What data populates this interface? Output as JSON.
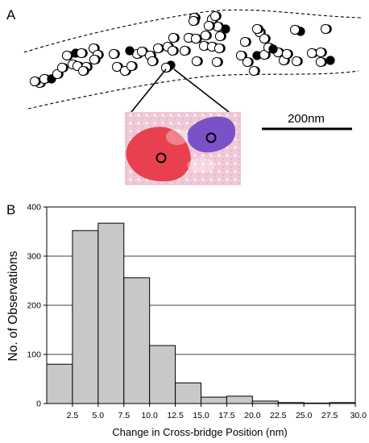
{
  "panel_a": {
    "label": "A",
    "scale_bar_label": "200nm",
    "inset_colors": {
      "red": "#e8404f",
      "blue": "#7a52c8",
      "bg": "#f1c6d3"
    },
    "beads": [
      [
        49,
        103,
        "w"
      ],
      [
        43,
        101,
        "w"
      ],
      [
        55,
        98,
        "w"
      ],
      [
        64,
        98,
        "b"
      ],
      [
        71,
        92,
        "w"
      ],
      [
        77,
        84,
        "w"
      ],
      [
        83,
        69,
        "w"
      ],
      [
        94,
        66,
        "b"
      ],
      [
        101,
        66,
        "w"
      ],
      [
        90,
        80,
        "w"
      ],
      [
        96,
        82,
        "w"
      ],
      [
        107,
        83,
        "w"
      ],
      [
        103,
        88,
        "w"
      ],
      [
        116,
        60,
        "w"
      ],
      [
        121,
        68,
        "w"
      ],
      [
        117,
        74,
        "w"
      ],
      [
        141,
        67,
        "w"
      ],
      [
        145,
        83,
        "w"
      ],
      [
        155,
        88,
        "w"
      ],
      [
        163,
        82,
        "w"
      ],
      [
        170,
        67,
        "w"
      ],
      [
        161,
        63,
        "b"
      ],
      [
        176,
        64,
        "w"
      ],
      [
        186,
        69,
        "w"
      ],
      [
        189,
        76,
        "w"
      ],
      [
        196,
        60,
        "w"
      ],
      [
        208,
        58,
        "w"
      ],
      [
        214,
        63,
        "w"
      ],
      [
        212,
        81,
        "b"
      ],
      [
        206,
        84,
        "w"
      ],
      [
        234,
        47,
        "w"
      ],
      [
        243,
        48,
        "w"
      ],
      [
        255,
        44,
        "w"
      ],
      [
        253,
        57,
        "w"
      ],
      [
        263,
        58,
        "w"
      ],
      [
        272,
        60,
        "w"
      ],
      [
        273,
        45,
        "w"
      ],
      [
        280,
        36,
        "b"
      ],
      [
        270,
        33,
        "w"
      ],
      [
        263,
        24,
        "w"
      ],
      [
        259,
        32,
        "w"
      ],
      [
        267,
        20,
        "w"
      ],
      [
        241,
        22,
        "w"
      ],
      [
        244,
        76,
        "w"
      ],
      [
        269,
        77,
        "w"
      ],
      [
        240,
        26,
        "w"
      ],
      [
        304,
        52,
        "w"
      ],
      [
        299,
        69,
        "w"
      ],
      [
        307,
        77,
        "w"
      ],
      [
        315,
        88,
        "w"
      ],
      [
        319,
        69,
        "b"
      ],
      [
        328,
        68,
        "w"
      ],
      [
        322,
        40,
        "w"
      ],
      [
        328,
        48,
        "w"
      ],
      [
        333,
        59,
        "w"
      ],
      [
        345,
        65,
        "w"
      ],
      [
        352,
        75,
        "w"
      ],
      [
        356,
        67,
        "w"
      ],
      [
        368,
        76,
        "w"
      ],
      [
        373,
        39,
        "b"
      ],
      [
        366,
        37,
        "w"
      ],
      [
        387,
        66,
        "w"
      ],
      [
        398,
        65,
        "w"
      ],
      [
        398,
        77,
        "w"
      ],
      [
        410,
        75,
        "b"
      ],
      [
        404,
        36,
        "w"
      ],
      [
        319,
        36,
        "w"
      ],
      [
        339,
        61,
        "b"
      ],
      [
        215,
        47,
        "w"
      ],
      [
        229,
        63,
        "w"
      ]
    ]
  },
  "panel_b": {
    "label": "B"
  },
  "chart_data": {
    "type": "bar",
    "title": "",
    "xlabel": "Change in Cross-bridge Position (nm)",
    "ylabel": "No. of Observations",
    "bin_edges": [
      0,
      2.5,
      5.0,
      7.5,
      10.0,
      12.5,
      15.0,
      17.5,
      20.0,
      22.5,
      25.0,
      27.5,
      30.0
    ],
    "values": [
      80,
      352,
      367,
      256,
      118,
      42,
      13,
      15,
      5,
      2,
      1,
      2
    ],
    "ylim": [
      0,
      400
    ],
    "xlim": [
      0,
      30.0
    ],
    "yticks": [
      "0",
      "100",
      "200",
      "300",
      "400"
    ],
    "xticks": [
      "2.5",
      "5.0",
      "7.5",
      "10.0",
      "12.5",
      "15.0",
      "17.5",
      "20.0",
      "22.5",
      "25.0",
      "27.5",
      "30.0"
    ],
    "bar_color": "#c8c8c8",
    "grid": true
  }
}
